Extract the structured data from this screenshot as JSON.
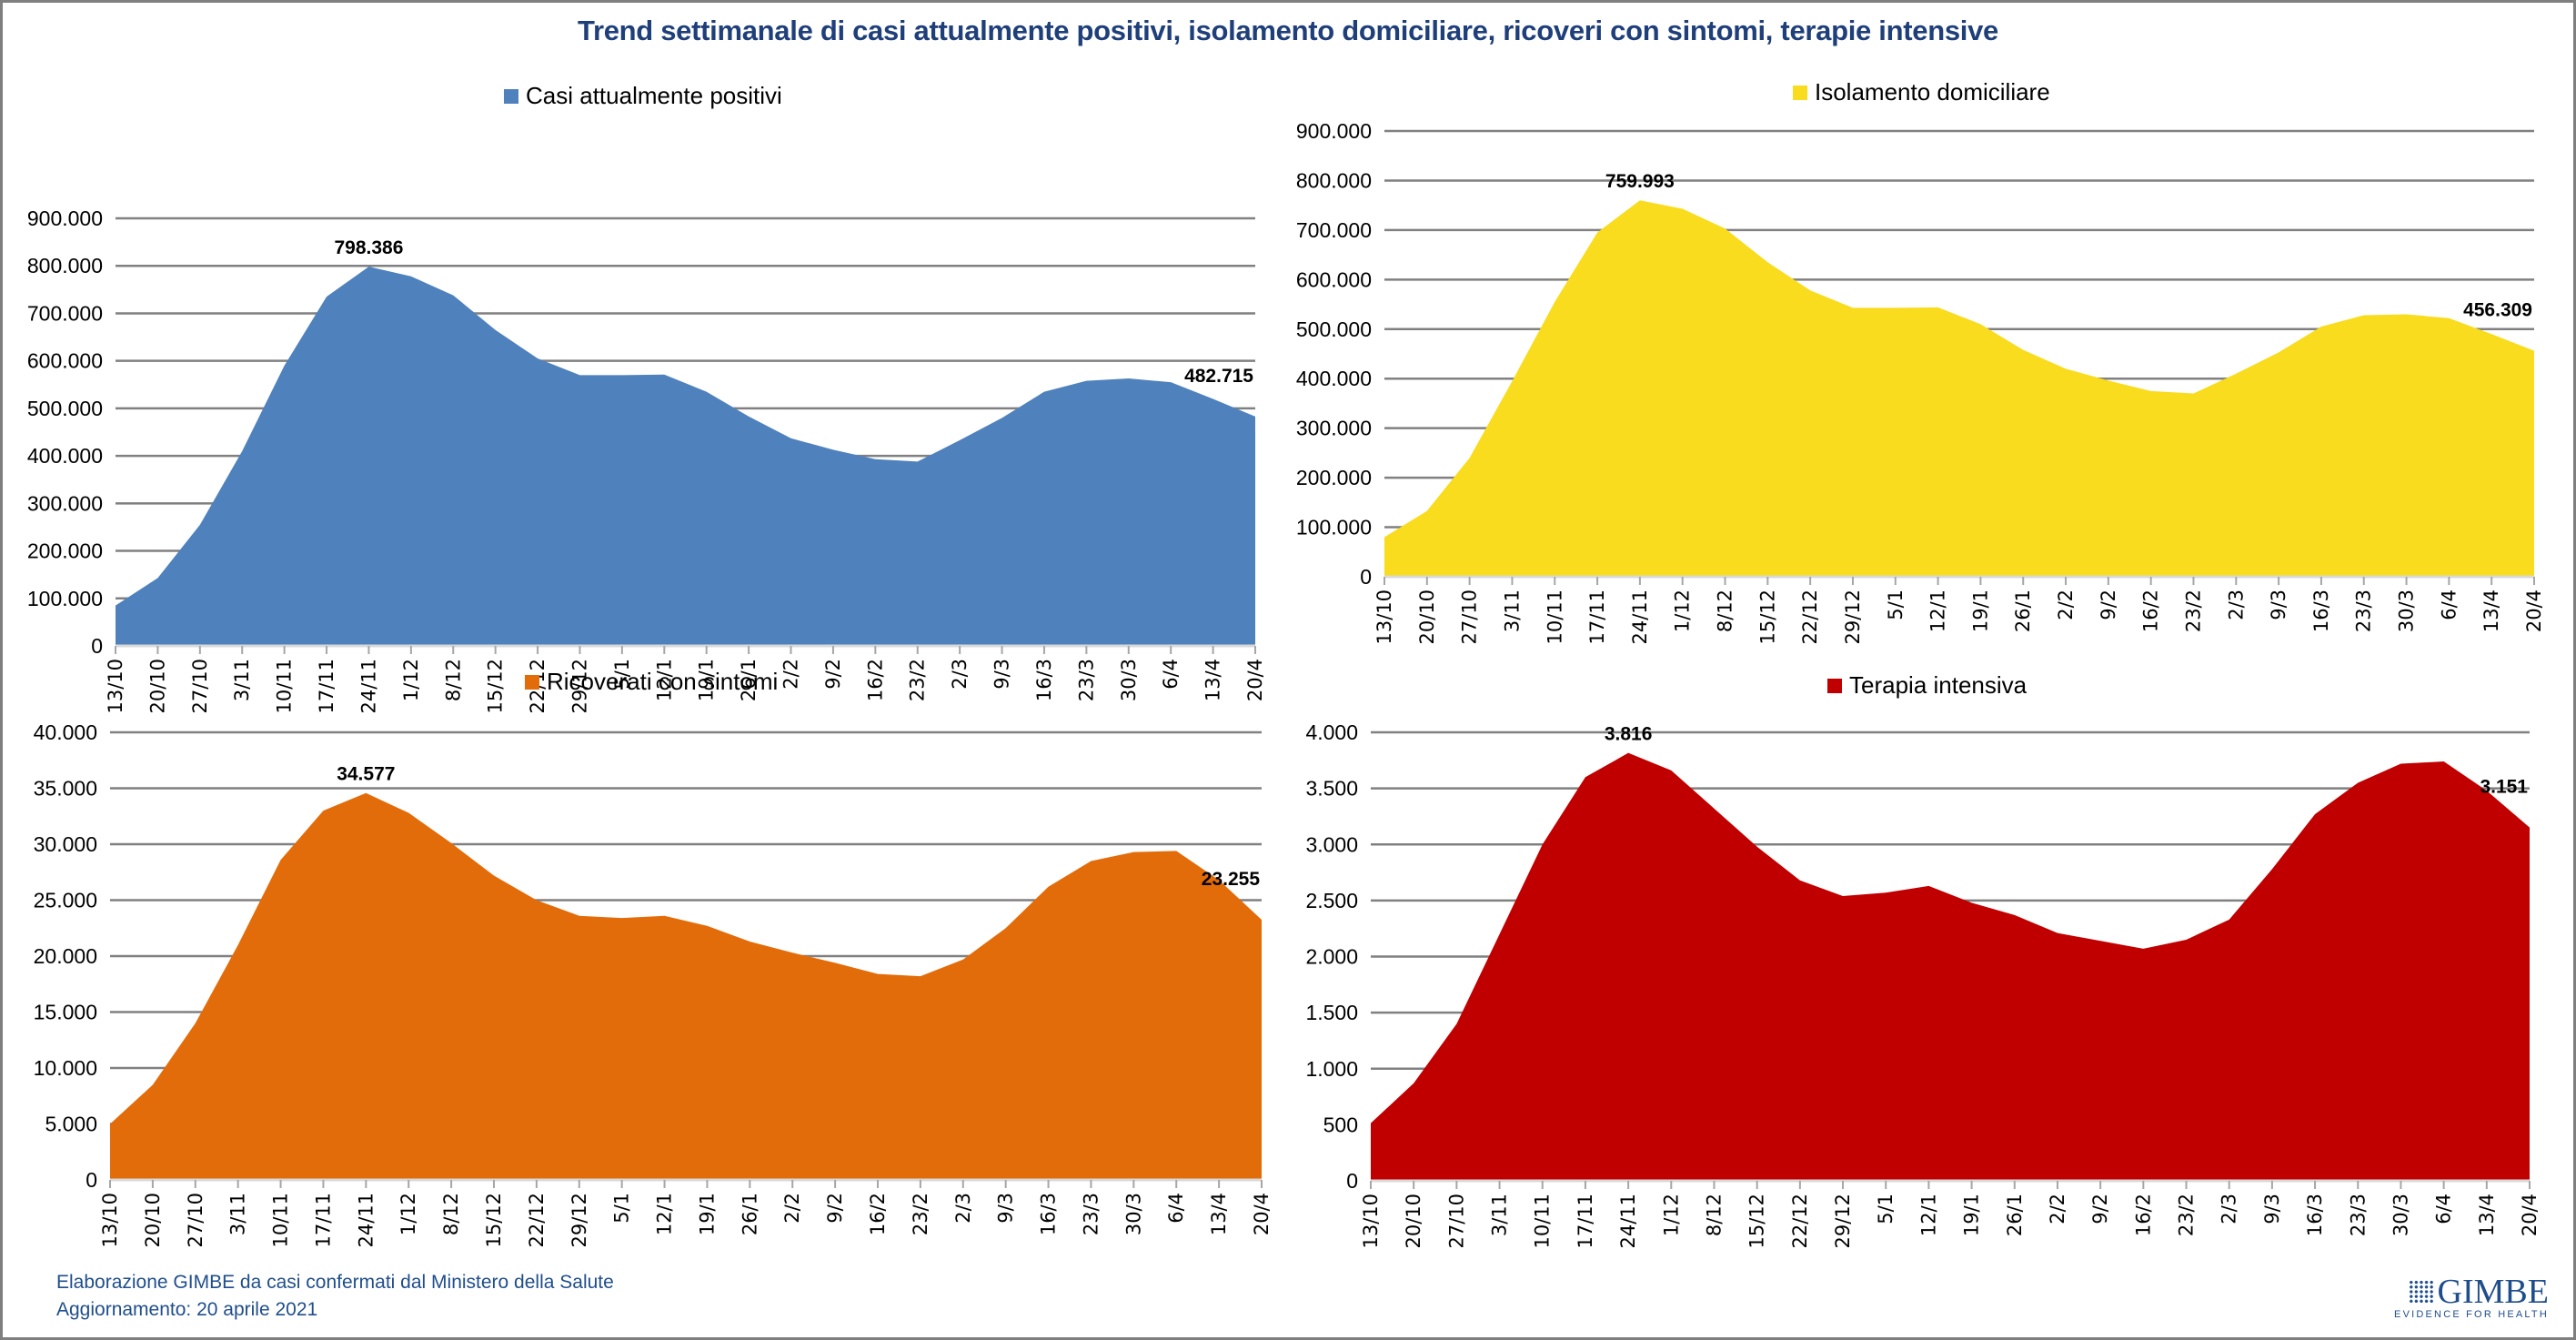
{
  "title": "Trend settimanale di casi attualmente positivi, isolamento domiciliare, ricoveri con sintomi, terapie intensive",
  "footer": {
    "line1": "Elaborazione GIMBE da casi confermati dal Ministero della Salute",
    "line2": "Aggiornamento: 20 aprile 2021"
  },
  "logo": {
    "name": "GIMBE",
    "tagline": "EVIDENCE FOR HEALTH"
  },
  "chart_data": [
    {
      "type": "area",
      "title": "Casi attualmente positivi",
      "legend": "Casi attualmente positivi",
      "legend_position": "top-center",
      "color": "#4f81bd",
      "ylim": [
        0,
        900000
      ],
      "ytick_step": 100000,
      "yticks": [
        "0",
        "100.000",
        "200.000",
        "300.000",
        "400.000",
        "500.000",
        "600.000",
        "700.000",
        "800.000",
        "900.000"
      ],
      "grid": true,
      "x": [
        "13/10",
        "20/10",
        "27/10",
        "3/11",
        "10/11",
        "17/11",
        "24/11",
        "1/12",
        "8/12",
        "15/12",
        "22/12",
        "29/12",
        "5/1",
        "12/1",
        "19/1",
        "26/1",
        "2/2",
        "9/2",
        "16/2",
        "23/2",
        "2/3",
        "9/3",
        "16/3",
        "23/3",
        "30/3",
        "6/4",
        "13/4",
        "20/4"
      ],
      "values": [
        85000,
        143000,
        255000,
        410000,
        590000,
        735000,
        798386,
        778000,
        738000,
        665000,
        605000,
        570000,
        570000,
        571000,
        535000,
        483000,
        437000,
        413000,
        393000,
        388000,
        433000,
        480000,
        535000,
        558000,
        563000,
        555000,
        520000,
        482715
      ],
      "annotations": [
        {
          "index": 6,
          "label": "798.386"
        },
        {
          "index": 27,
          "label": "482.715"
        }
      ]
    },
    {
      "type": "area",
      "title": "Isolamento domiciliare",
      "legend": "Isolamento domiciliare",
      "legend_position": "top-center",
      "color": "#f8dc1d",
      "ylim": [
        0,
        900000
      ],
      "ytick_step": 100000,
      "yticks": [
        "0",
        "100.000",
        "200.000",
        "300.000",
        "400.000",
        "500.000",
        "600.000",
        "700.000",
        "800.000",
        "900.000"
      ],
      "grid": true,
      "x": [
        "13/10",
        "20/10",
        "27/10",
        "3/11",
        "10/11",
        "17/11",
        "24/11",
        "1/12",
        "8/12",
        "15/12",
        "22/12",
        "29/12",
        "5/1",
        "12/1",
        "19/1",
        "26/1",
        "2/2",
        "9/2",
        "16/2",
        "23/2",
        "2/3",
        "9/3",
        "16/3",
        "23/3",
        "30/3",
        "6/4",
        "13/4",
        "20/4"
      ],
      "values": [
        80000,
        133000,
        240000,
        395000,
        555000,
        695000,
        759993,
        743000,
        703000,
        635000,
        578000,
        543000,
        543000,
        544000,
        510000,
        458000,
        420000,
        396000,
        375000,
        370000,
        410000,
        453000,
        505000,
        528000,
        530000,
        522000,
        490000,
        456309
      ],
      "annotations": [
        {
          "index": 6,
          "label": "759.993"
        },
        {
          "index": 27,
          "label": "456.309"
        }
      ]
    },
    {
      "type": "area",
      "title": "Ricoverati con sintomi",
      "legend": "Ricoverati con sintomi",
      "legend_position": "top-center",
      "color": "#e36c0a",
      "ylim": [
        0,
        40000
      ],
      "ytick_step": 5000,
      "yticks": [
        "0",
        "5.000",
        "10.000",
        "15.000",
        "20.000",
        "25.000",
        "30.000",
        "35.000",
        "40.000"
      ],
      "grid": true,
      "x": [
        "13/10",
        "20/10",
        "27/10",
        "3/11",
        "10/11",
        "17/11",
        "24/11",
        "1/12",
        "8/12",
        "15/12",
        "22/12",
        "29/12",
        "5/1",
        "12/1",
        "19/1",
        "26/1",
        "2/2",
        "9/2",
        "16/2",
        "23/2",
        "2/3",
        "9/3",
        "16/3",
        "23/3",
        "30/3",
        "6/4",
        "13/4",
        "20/4"
      ],
      "values": [
        5000,
        8500,
        14000,
        21000,
        28600,
        33000,
        34577,
        32800,
        30100,
        27200,
        25000,
        23600,
        23400,
        23600,
        22700,
        21300,
        20300,
        19400,
        18400,
        18200,
        19700,
        22500,
        26200,
        28500,
        29300,
        29400,
        26800,
        23255
      ],
      "annotations": [
        {
          "index": 6,
          "label": "34.577"
        },
        {
          "index": 27,
          "label": "23.255"
        }
      ]
    },
    {
      "type": "area",
      "title": "Terapia intensiva",
      "legend": "Terapia intensiva",
      "legend_position": "top-center",
      "color": "#c00000",
      "ylim": [
        0,
        4000
      ],
      "ytick_step": 500,
      "yticks": [
        "0",
        "500",
        "1.000",
        "1.500",
        "2.000",
        "2.500",
        "3.000",
        "3.500",
        "4.000"
      ],
      "grid": true,
      "x": [
        "13/10",
        "20/10",
        "27/10",
        "3/11",
        "10/11",
        "17/11",
        "24/11",
        "1/12",
        "8/12",
        "15/12",
        "22/12",
        "29/12",
        "5/1",
        "12/1",
        "19/1",
        "26/1",
        "2/2",
        "9/2",
        "16/2",
        "23/2",
        "2/3",
        "9/3",
        "16/3",
        "23/3",
        "30/3",
        "6/4",
        "13/4",
        "20/4"
      ],
      "values": [
        514,
        870,
        1400,
        2200,
        3000,
        3600,
        3816,
        3660,
        3320,
        2980,
        2680,
        2540,
        2570,
        2630,
        2480,
        2370,
        2210,
        2140,
        2070,
        2150,
        2330,
        2780,
        3270,
        3550,
        3720,
        3740,
        3480,
        3151
      ],
      "annotations": [
        {
          "index": 6,
          "label": "3.816"
        },
        {
          "index": 27,
          "label": "3.151"
        }
      ]
    }
  ]
}
